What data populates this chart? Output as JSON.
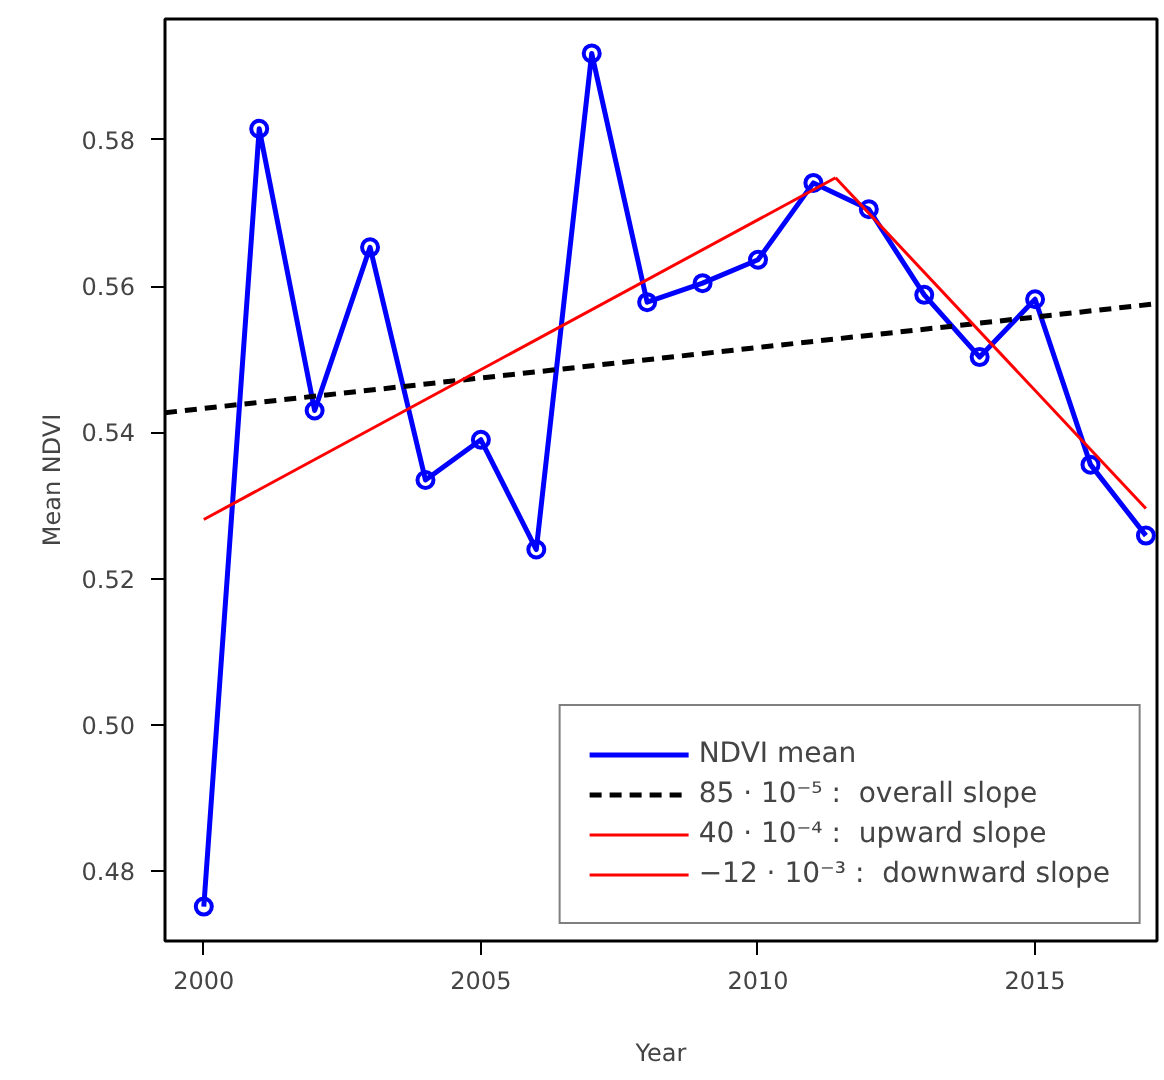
{
  "chart_data": {
    "type": "line",
    "xlabel": "Year",
    "ylabel": "Mean NDVI",
    "x": [
      2000,
      2001,
      2002,
      2003,
      2004,
      2005,
      2006,
      2007,
      2008,
      2009,
      2010,
      2011,
      2012,
      2013,
      2014,
      2015,
      2016,
      2017
    ],
    "series": [
      {
        "name": "NDVI mean",
        "color": "#0000ff",
        "marker": "circle",
        "line_style": "solid",
        "values": [
          0.4752,
          0.5815,
          0.543,
          0.5653,
          0.5335,
          0.539,
          0.524,
          0.5918,
          0.5578,
          0.5604,
          0.5636,
          0.5741,
          0.5705,
          0.5588,
          0.5503,
          0.5582,
          0.5356,
          0.5259
        ]
      },
      {
        "name": "85 · 10⁻⁵ :  overall slope",
        "color": "#000000",
        "marker": "none",
        "line_style": "dashed",
        "x": [
          1999.3,
          2017.2
        ],
        "values": [
          0.5427,
          0.5576
        ]
      },
      {
        "name": "40 · 10⁻⁴ :  upward slope",
        "color": "#ff0000",
        "marker": "none",
        "line_style": "solid",
        "x": [
          2000,
          2011.4
        ],
        "values": [
          0.5281,
          0.5748
        ]
      },
      {
        "name": "−12 · 10⁻³ :  downward slope",
        "color": "#ff0000",
        "marker": "none",
        "line_style": "solid",
        "x": [
          2011.4,
          2017
        ],
        "values": [
          0.5748,
          0.5296
        ]
      }
    ],
    "xlim": [
      1999.3,
      2017.2
    ],
    "ylim": [
      0.4705,
      0.5965
    ],
    "xticks": [
      2000,
      2005,
      2010,
      2015
    ],
    "yticks": [
      {
        "value": 0.48,
        "label": "0.48"
      },
      {
        "value": 0.5,
        "label": "0.50"
      },
      {
        "value": 0.52,
        "label": "0.52"
      },
      {
        "value": 0.54,
        "label": "0.54"
      },
      {
        "value": 0.56,
        "label": "0.56"
      },
      {
        "value": 0.58,
        "label": "0.58"
      }
    ],
    "grid": false,
    "legend": "bottom right"
  }
}
